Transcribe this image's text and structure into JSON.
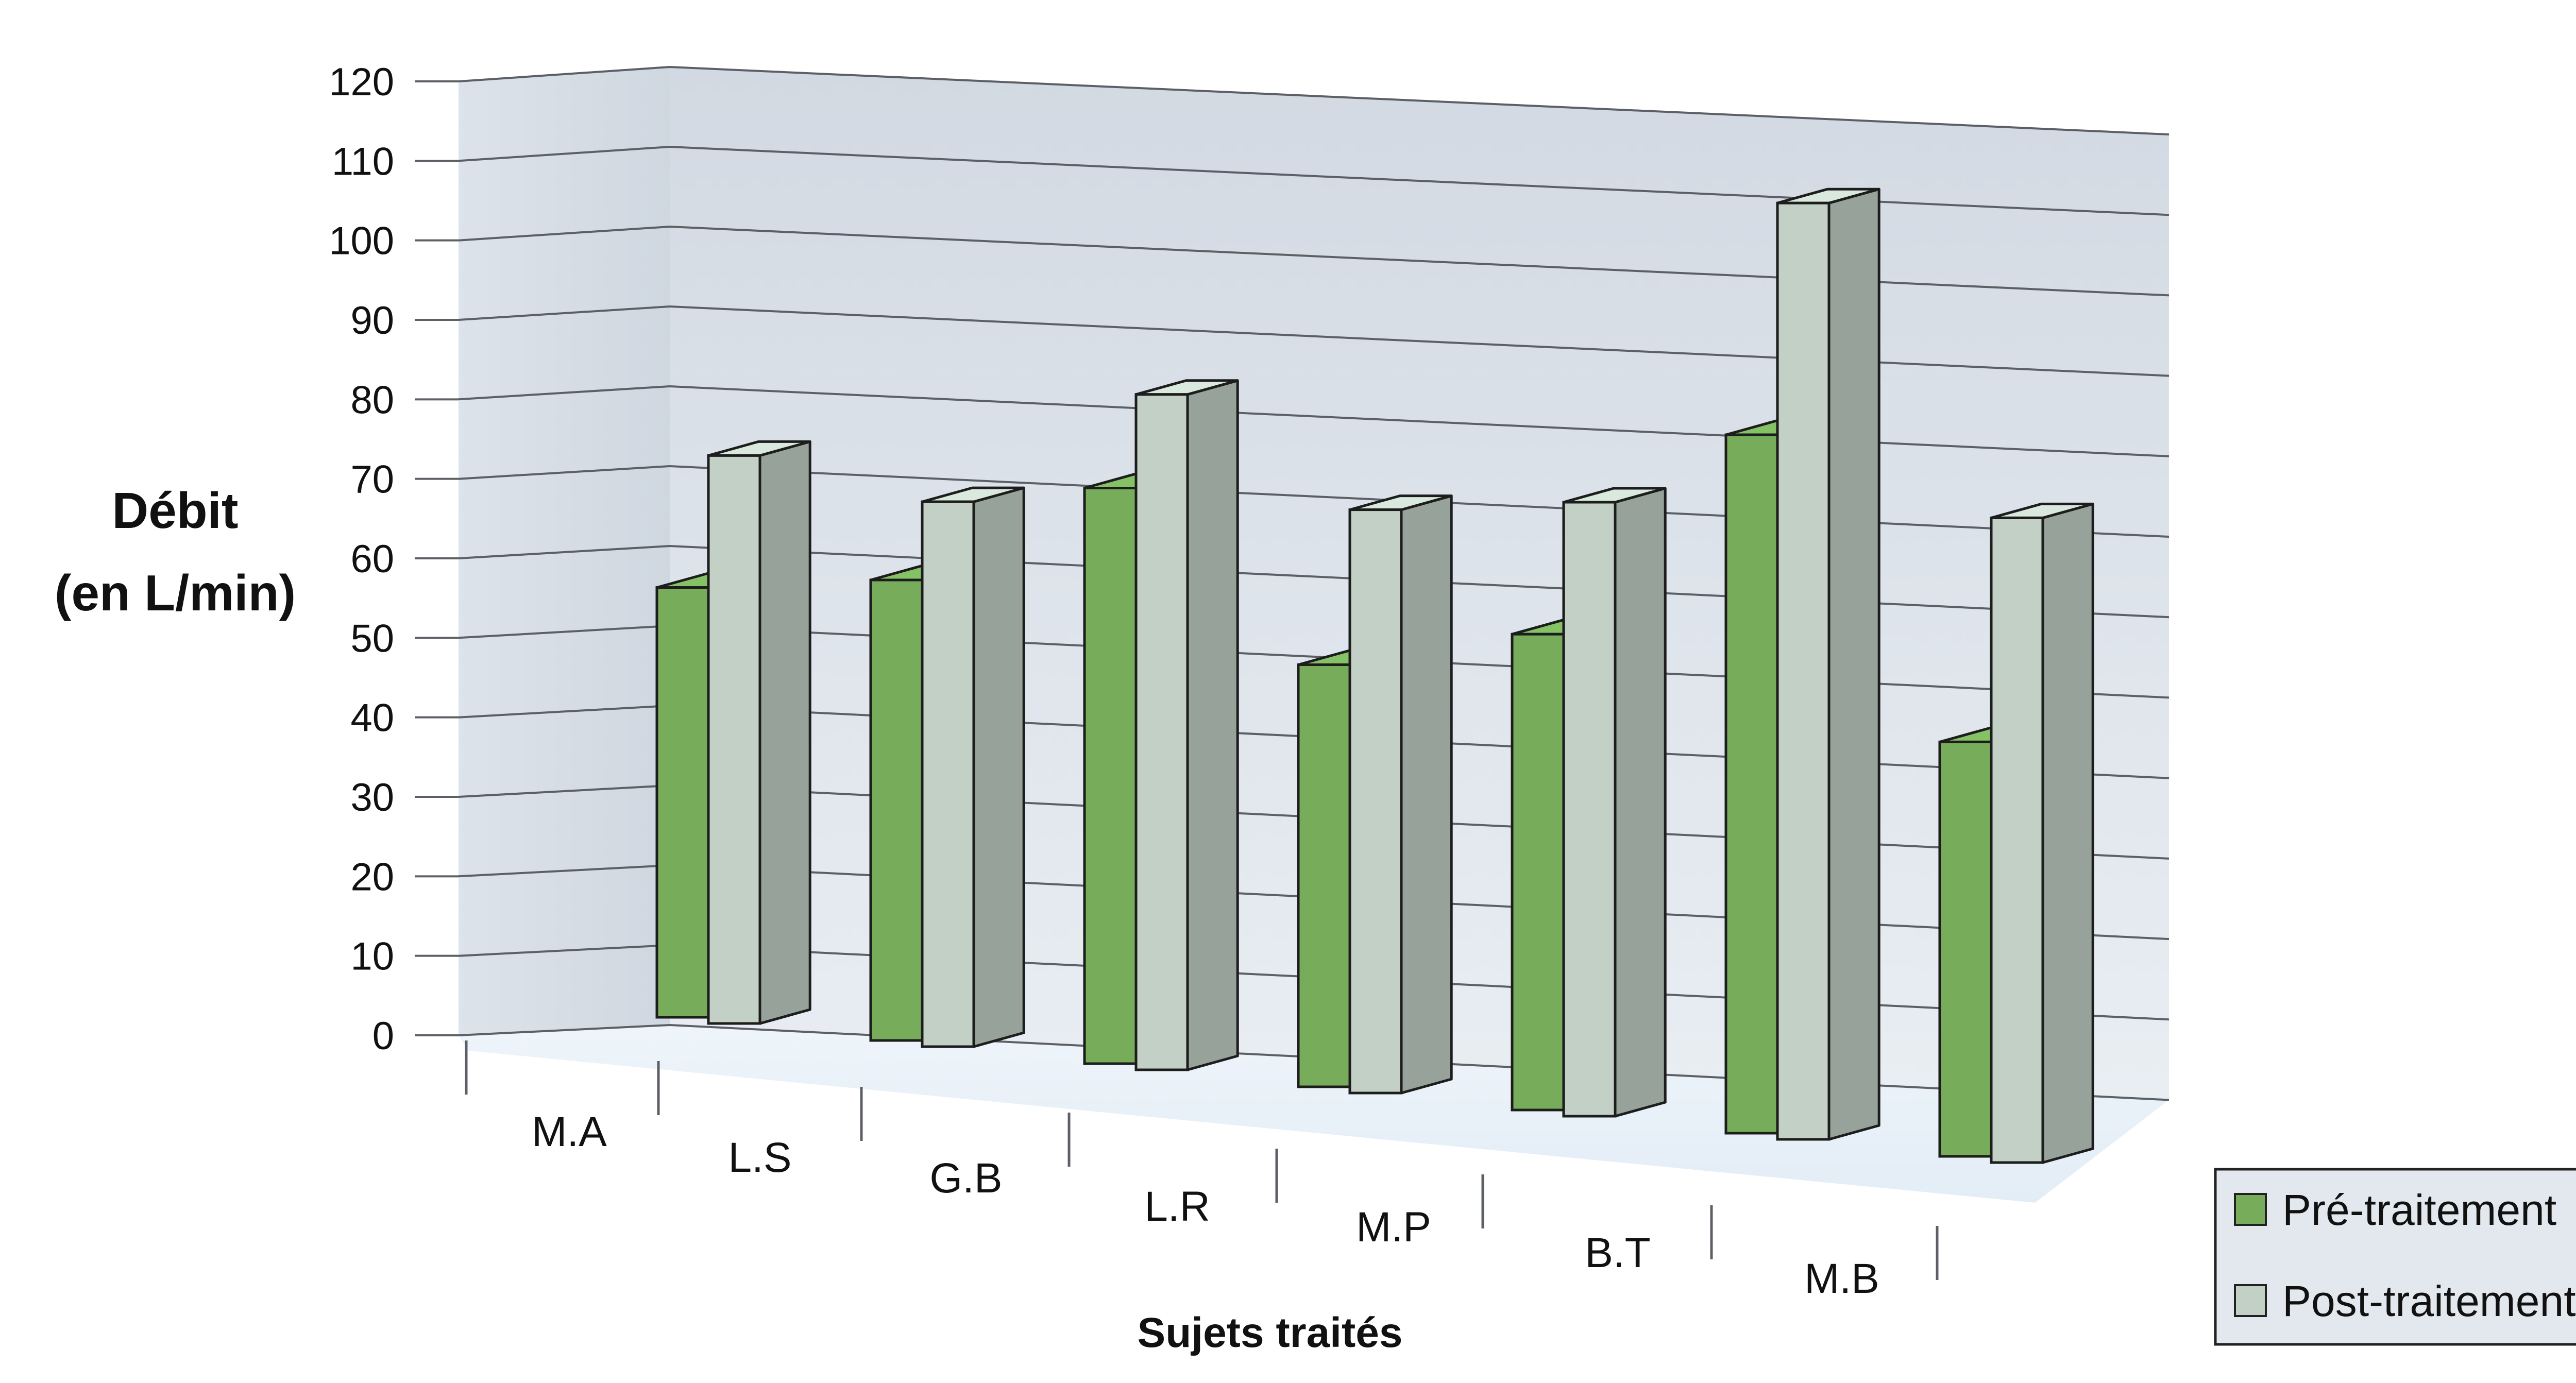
{
  "chart_data": {
    "type": "bar",
    "ylabel_lines": [
      "Débit",
      "(en L/min)"
    ],
    "xlabel": "Sujets traités",
    "ylim": [
      0,
      120
    ],
    "yticks": [
      0,
      10,
      20,
      30,
      40,
      50,
      60,
      70,
      80,
      90,
      100,
      110,
      120
    ],
    "categories": [
      "M.A",
      "L.S",
      "G.B",
      "L.R",
      "M.P",
      "B.T",
      "M.B"
    ],
    "series": [
      {
        "name": "Pré-traitement",
        "values": [
          56,
          60,
          75,
          55,
          62,
          91,
          54
        ],
        "color": "#77ad5a"
      },
      {
        "name": "Post-traitement",
        "values": [
          74,
          71,
          88,
          76,
          80,
          122,
          84
        ],
        "color": "#c2d0c5"
      }
    ],
    "grid": true,
    "legend_position": "bottom-right",
    "style": "3d"
  }
}
